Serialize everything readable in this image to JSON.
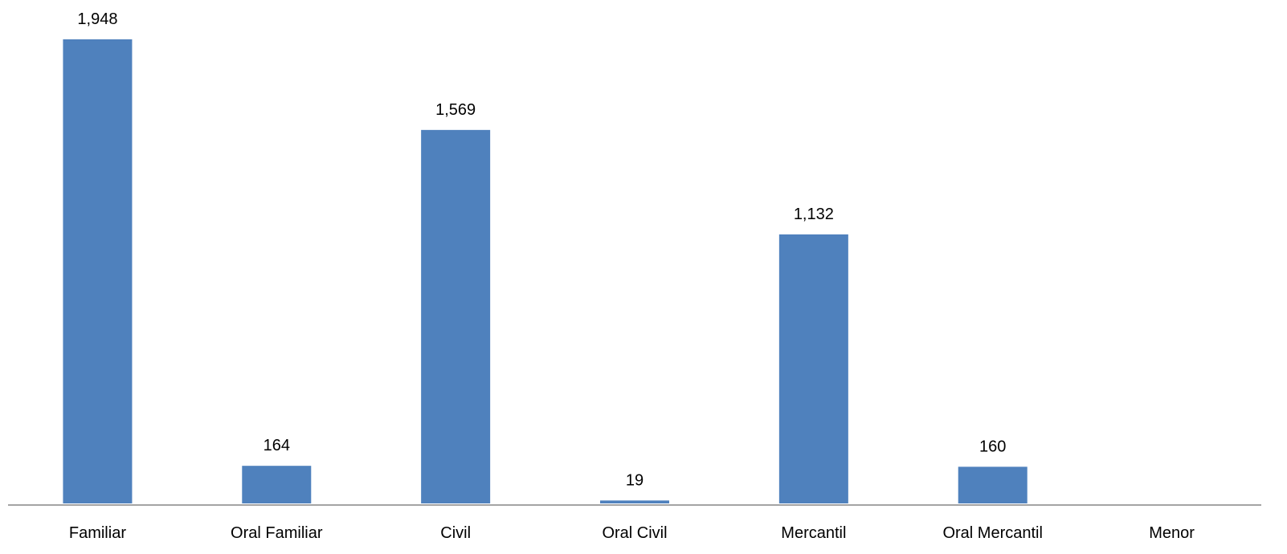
{
  "chart_data": {
    "type": "bar",
    "categories": [
      "Familiar",
      "Oral Familiar",
      "Civil",
      "Oral Civil",
      "Mercantil",
      "Oral Mercantil",
      "Menor"
    ],
    "values": [
      1948,
      164,
      1569,
      19,
      1132,
      160,
      0
    ],
    "data_labels": [
      "1,948",
      "164",
      "1,569",
      "19",
      "1,132",
      "160",
      ""
    ],
    "title": "",
    "xlabel": "",
    "ylabel": "",
    "ylim": [
      0,
      1948
    ],
    "grid": false,
    "legend": "none",
    "colors": {
      "bar": "#4f81bd",
      "axis": "#868686",
      "text": "#000000"
    }
  }
}
